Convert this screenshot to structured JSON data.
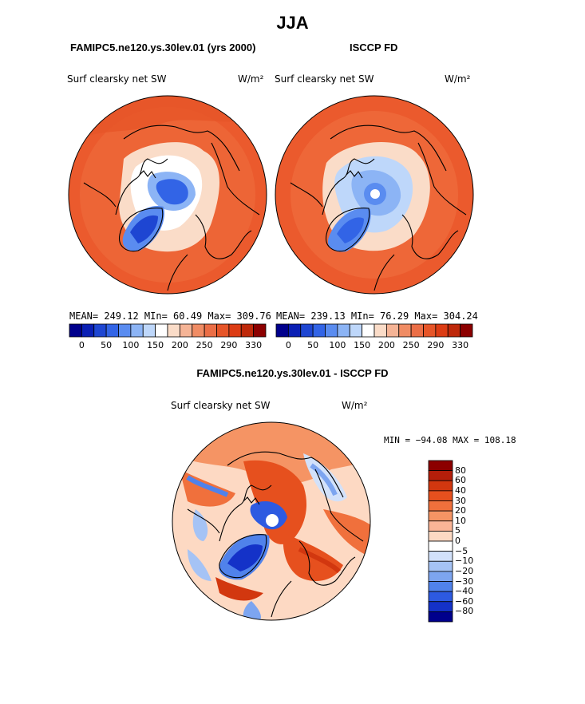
{
  "title": "JJA",
  "panels": {
    "model": {
      "header": "FAMIPC5.ne120.ys.30lev.01 (yrs 2000)",
      "variable": "Surf clearsky net SW",
      "units": "W/m²",
      "stats": "MEAN= 249.12   MIn=  60.49   Max= 309.76"
    },
    "obs": {
      "header": "ISCCP FD",
      "variable": "Surf clearsky net SW",
      "units": "W/m²",
      "stats": "MEAN= 239.13   MIn=  76.29   Max= 304.24"
    },
    "diff": {
      "header": "FAMIPC5.ne120.ys.30lev.01 - ISCCP FD",
      "variable": "Surf clearsky net SW",
      "units": "W/m²",
      "stats": "MIN = −94.08 MAX = 108.18"
    }
  },
  "colorbar_top": {
    "colors": [
      "#00008c",
      "#0a1fb4",
      "#1e46d2",
      "#3264e6",
      "#5a8cf0",
      "#8cb4f5",
      "#bed7fa",
      "#ffffff",
      "#fadcc8",
      "#f5b496",
      "#f08c64",
      "#eb6e46",
      "#e65528",
      "#dc3c14",
      "#be280a",
      "#8c0000"
    ],
    "labels": [
      "0",
      "50",
      "100",
      "150",
      "200",
      "250",
      "290",
      "330"
    ]
  },
  "colorbar_diff": {
    "colors": [
      "#8c0000",
      "#b41e0a",
      "#d2370f",
      "#e6501e",
      "#f0703c",
      "#f59464",
      "#fab496",
      "#fdd9c3",
      "#ffffff",
      "#d2e1fa",
      "#a5c3f5",
      "#7da5f0",
      "#5082eb",
      "#2d5ae1",
      "#1432c8",
      "#00008c"
    ],
    "labels": [
      "80",
      "60",
      "40",
      "30",
      "20",
      "10",
      "5",
      "0",
      "−5",
      "−10",
      "−20",
      "−30",
      "−40",
      "−60",
      "−80"
    ]
  }
}
